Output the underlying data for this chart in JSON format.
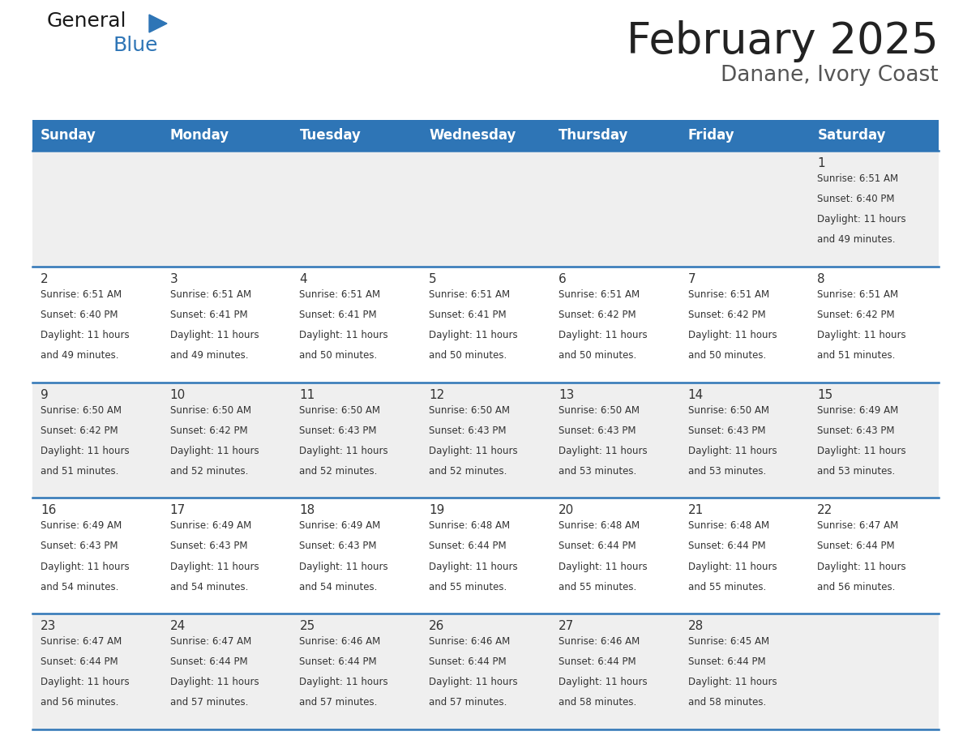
{
  "title": "February 2025",
  "subtitle": "Danane, Ivory Coast",
  "days_of_week": [
    "Sunday",
    "Monday",
    "Tuesday",
    "Wednesday",
    "Thursday",
    "Friday",
    "Saturday"
  ],
  "header_bg": "#2E75B6",
  "header_text": "#FFFFFF",
  "cell_bg_light": "#EFEFEF",
  "cell_bg_white": "#FFFFFF",
  "border_color": "#2E75B6",
  "text_color": "#333333",
  "title_color": "#222222",
  "subtitle_color": "#555555",
  "calendar_data": [
    [
      null,
      null,
      null,
      null,
      null,
      null,
      {
        "day": 1,
        "sunrise": "6:51 AM",
        "sunset": "6:40 PM",
        "daylight": "11 hours and 49 minutes."
      }
    ],
    [
      {
        "day": 2,
        "sunrise": "6:51 AM",
        "sunset": "6:40 PM",
        "daylight": "11 hours and 49 minutes."
      },
      {
        "day": 3,
        "sunrise": "6:51 AM",
        "sunset": "6:41 PM",
        "daylight": "11 hours and 49 minutes."
      },
      {
        "day": 4,
        "sunrise": "6:51 AM",
        "sunset": "6:41 PM",
        "daylight": "11 hours and 50 minutes."
      },
      {
        "day": 5,
        "sunrise": "6:51 AM",
        "sunset": "6:41 PM",
        "daylight": "11 hours and 50 minutes."
      },
      {
        "day": 6,
        "sunrise": "6:51 AM",
        "sunset": "6:42 PM",
        "daylight": "11 hours and 50 minutes."
      },
      {
        "day": 7,
        "sunrise": "6:51 AM",
        "sunset": "6:42 PM",
        "daylight": "11 hours and 50 minutes."
      },
      {
        "day": 8,
        "sunrise": "6:51 AM",
        "sunset": "6:42 PM",
        "daylight": "11 hours and 51 minutes."
      }
    ],
    [
      {
        "day": 9,
        "sunrise": "6:50 AM",
        "sunset": "6:42 PM",
        "daylight": "11 hours and 51 minutes."
      },
      {
        "day": 10,
        "sunrise": "6:50 AM",
        "sunset": "6:42 PM",
        "daylight": "11 hours and 52 minutes."
      },
      {
        "day": 11,
        "sunrise": "6:50 AM",
        "sunset": "6:43 PM",
        "daylight": "11 hours and 52 minutes."
      },
      {
        "day": 12,
        "sunrise": "6:50 AM",
        "sunset": "6:43 PM",
        "daylight": "11 hours and 52 minutes."
      },
      {
        "day": 13,
        "sunrise": "6:50 AM",
        "sunset": "6:43 PM",
        "daylight": "11 hours and 53 minutes."
      },
      {
        "day": 14,
        "sunrise": "6:50 AM",
        "sunset": "6:43 PM",
        "daylight": "11 hours and 53 minutes."
      },
      {
        "day": 15,
        "sunrise": "6:49 AM",
        "sunset": "6:43 PM",
        "daylight": "11 hours and 53 minutes."
      }
    ],
    [
      {
        "day": 16,
        "sunrise": "6:49 AM",
        "sunset": "6:43 PM",
        "daylight": "11 hours and 54 minutes."
      },
      {
        "day": 17,
        "sunrise": "6:49 AM",
        "sunset": "6:43 PM",
        "daylight": "11 hours and 54 minutes."
      },
      {
        "day": 18,
        "sunrise": "6:49 AM",
        "sunset": "6:43 PM",
        "daylight": "11 hours and 54 minutes."
      },
      {
        "day": 19,
        "sunrise": "6:48 AM",
        "sunset": "6:44 PM",
        "daylight": "11 hours and 55 minutes."
      },
      {
        "day": 20,
        "sunrise": "6:48 AM",
        "sunset": "6:44 PM",
        "daylight": "11 hours and 55 minutes."
      },
      {
        "day": 21,
        "sunrise": "6:48 AM",
        "sunset": "6:44 PM",
        "daylight": "11 hours and 55 minutes."
      },
      {
        "day": 22,
        "sunrise": "6:47 AM",
        "sunset": "6:44 PM",
        "daylight": "11 hours and 56 minutes."
      }
    ],
    [
      {
        "day": 23,
        "sunrise": "6:47 AM",
        "sunset": "6:44 PM",
        "daylight": "11 hours and 56 minutes."
      },
      {
        "day": 24,
        "sunrise": "6:47 AM",
        "sunset": "6:44 PM",
        "daylight": "11 hours and 57 minutes."
      },
      {
        "day": 25,
        "sunrise": "6:46 AM",
        "sunset": "6:44 PM",
        "daylight": "11 hours and 57 minutes."
      },
      {
        "day": 26,
        "sunrise": "6:46 AM",
        "sunset": "6:44 PM",
        "daylight": "11 hours and 57 minutes."
      },
      {
        "day": 27,
        "sunrise": "6:46 AM",
        "sunset": "6:44 PM",
        "daylight": "11 hours and 58 minutes."
      },
      {
        "day": 28,
        "sunrise": "6:45 AM",
        "sunset": "6:44 PM",
        "daylight": "11 hours and 58 minutes."
      },
      null
    ]
  ],
  "num_weeks": 5,
  "num_cols": 7,
  "fig_width": 11.88,
  "fig_height": 9.18,
  "dpi": 100
}
